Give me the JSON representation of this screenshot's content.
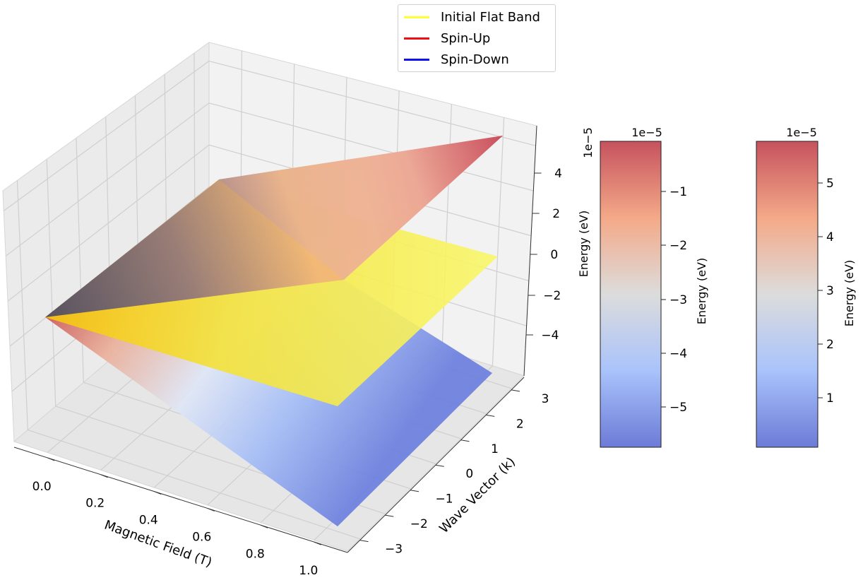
{
  "chart_data": {
    "type": "surface3d",
    "title": "",
    "xlabel": "Magnetic Field (T)",
    "ylabel": "Wave Vector (k)",
    "zlabel": "",
    "xlim": [
      0.0,
      1.0
    ],
    "ylim": [
      -3.14,
      3.14
    ],
    "zlim": [
      -5.8,
      5.8
    ],
    "x_ticks": [
      "0.0",
      "0.2",
      "0.4",
      "0.6",
      "0.8",
      "1.0"
    ],
    "y_ticks": [
      "−3",
      "−2",
      "−1",
      "0",
      "1",
      "2",
      "3"
    ],
    "z_ticks": [
      "−4",
      "−2",
      "0",
      "2",
      "4"
    ],
    "z_offset_label": "1e−5",
    "series": [
      {
        "name": "Initial Flat Band",
        "color": "#ffff33",
        "energy": 0.0,
        "description": "flat plane at E = 0"
      },
      {
        "name": "Spin-Up",
        "color": "#ee1111",
        "model": "E = +mu_B * B",
        "energy_at_B1": 5.79
      },
      {
        "name": "Spin-Down",
        "color": "#1111ee",
        "model": "E = -mu_B * B",
        "energy_at_B1": -5.79
      }
    ],
    "colorbars": [
      {
        "label": "Energy (eV)",
        "offset_label": "1e−5",
        "ticks": [
          "−1",
          "−2",
          "−3",
          "−4",
          "−5"
        ],
        "range": [
          -5.79,
          0.0
        ],
        "offset_label_left": "1e−5",
        "label_left": "Energy (eV)"
      },
      {
        "label": "Energy (eV)",
        "offset_label": "1e−5",
        "ticks": [
          "5",
          "4",
          "3",
          "2",
          "1"
        ],
        "range": [
          0.0,
          5.79
        ]
      }
    ],
    "legend": {
      "position": "top-center"
    },
    "grid": true,
    "colormap": "coolwarm"
  },
  "colors": {
    "flat": "#ffff33",
    "spin_up": "#ee1111",
    "spin_down": "#1111ee",
    "pane": "#f2f2f2",
    "grid": "#d0d0d0"
  }
}
